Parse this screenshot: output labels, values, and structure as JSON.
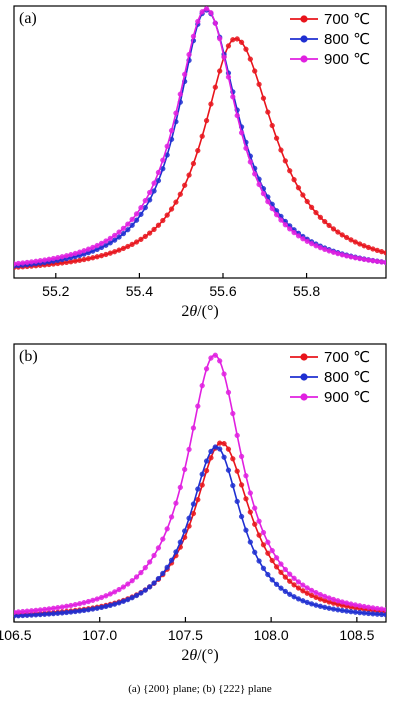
{
  "caption": "(a)  {200}  plane;  (b) {222} plane",
  "chart_data": [
    {
      "type": "line",
      "panel_label": "(a)",
      "xlabel_prefix": "2",
      "xlabel_symbol": "θ",
      "xlabel_suffix": "/(°)",
      "ylabel": "",
      "xlim": [
        55.1,
        55.99
      ],
      "ylim": [
        0,
        1.0
      ],
      "xticks": [
        "55.2",
        "55.4",
        "55.6",
        "55.8"
      ],
      "legend_position": "top-right",
      "series": [
        {
          "name": "700 ℃",
          "color": "#e8141c",
          "peak": 55.63,
          "height": 0.88,
          "wl": 0.095,
          "wr": 0.115,
          "base": 0.012
        },
        {
          "name": "800 ℃",
          "color": "#1f2fd1",
          "peak": 55.56,
          "height": 0.985,
          "wl": 0.085,
          "wr": 0.095,
          "base": 0.012
        },
        {
          "name": "900 ℃",
          "color": "#e020e0",
          "peak": 55.56,
          "height": 0.99,
          "wl": 0.09,
          "wr": 0.09,
          "base": 0.016
        }
      ]
    },
    {
      "type": "line",
      "panel_label": "(b)",
      "xlabel_prefix": "2",
      "xlabel_symbol": "θ",
      "xlabel_suffix": "/(°)",
      "ylabel": "",
      "xlim": [
        106.5,
        108.67
      ],
      "ylim": [
        0,
        1.0
      ],
      "xticks": [
        "106.5",
        "107.0",
        "107.5",
        "108.0",
        "108.5"
      ],
      "legend_position": "top-right",
      "series": [
        {
          "name": "700 ℃",
          "color": "#e8141c",
          "peak": 107.71,
          "height": 0.645,
          "wl": 0.2,
          "wr": 0.21,
          "base": 0.008
        },
        {
          "name": "800 ℃",
          "color": "#1f2fd1",
          "peak": 107.68,
          "height": 0.63,
          "wl": 0.19,
          "wr": 0.18,
          "base": 0.006
        },
        {
          "name": "900 ℃",
          "color": "#e020e0",
          "peak": 107.67,
          "height": 0.96,
          "wl": 0.2,
          "wr": 0.2,
          "base": 0.008
        }
      ]
    }
  ]
}
